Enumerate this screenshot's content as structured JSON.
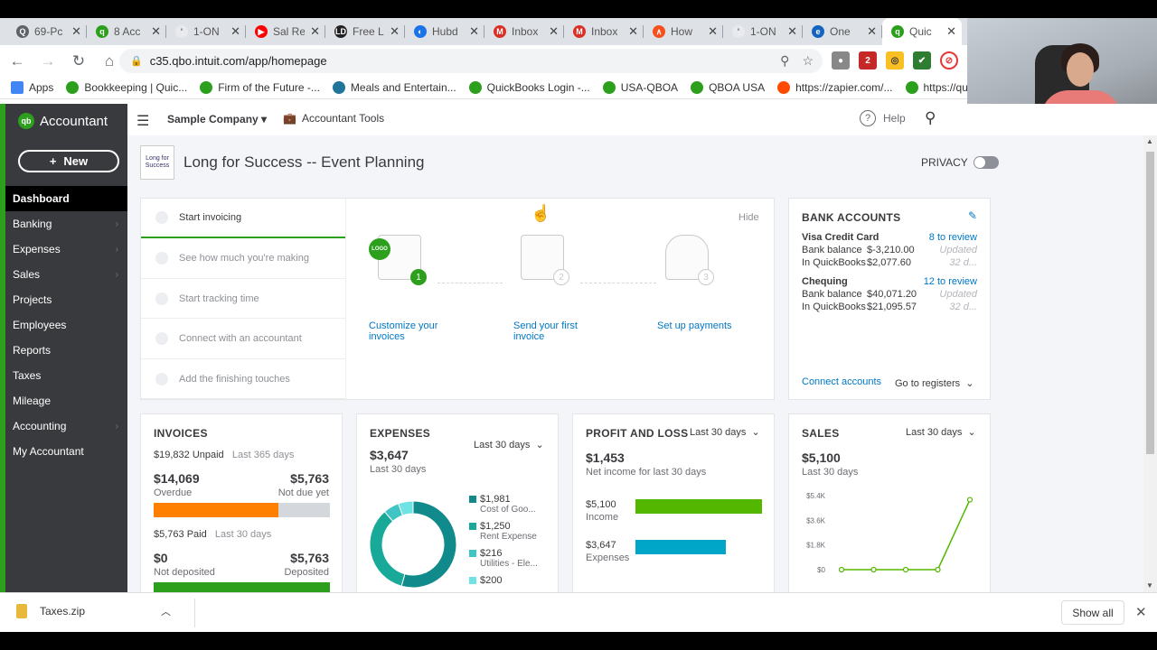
{
  "browser": {
    "tabs": [
      {
        "title": "69-Pc",
        "color": "#5f6368",
        "glyph": "Q"
      },
      {
        "title": "8 Acc",
        "color": "#2ca01c",
        "glyph": "q"
      },
      {
        "title": "1-ON",
        "color": "#fff",
        "glyph": "'"
      },
      {
        "title": "Sal Re",
        "color": "#ff0000",
        "glyph": "▶"
      },
      {
        "title": "Free L",
        "color": "#222",
        "glyph": "LD"
      },
      {
        "title": "Hubd",
        "color": "#1a73e8",
        "glyph": "◐"
      },
      {
        "title": "Inbox",
        "color": "#d93025",
        "glyph": "M"
      },
      {
        "title": "Inbox",
        "color": "#d93025",
        "glyph": "M"
      },
      {
        "title": "How",
        "color": "#f4511e",
        "glyph": "∧"
      },
      {
        "title": "1-ON",
        "color": "#fff",
        "glyph": "'"
      },
      {
        "title": "One",
        "color": "#1565c0",
        "glyph": "e"
      },
      {
        "title": "Quic",
        "color": "#2ca01c",
        "glyph": "q",
        "active": true
      }
    ],
    "url": "c35.qbo.intuit.com/app/homepage",
    "bookmarks": [
      {
        "label": "Apps",
        "color": "#4285f4"
      },
      {
        "label": "Bookkeeping | Quic...",
        "color": "#2ca01c"
      },
      {
        "label": "Firm of the Future -...",
        "color": "#2ca01c"
      },
      {
        "label": "Meals and Entertain...",
        "color": "#21759b"
      },
      {
        "label": "QuickBooks Login -...",
        "color": "#2ca01c"
      },
      {
        "label": "USA-QBOA",
        "color": "#2ca01c"
      },
      {
        "label": "QBOA USA",
        "color": "#2ca01c"
      },
      {
        "label": "https://zapier.com/...",
        "color": "#ff4a00"
      },
      {
        "label": "https://quick",
        "color": "#2ca01c"
      }
    ]
  },
  "sidebar": {
    "brand": "Accountant",
    "new_label": "New",
    "items": [
      {
        "label": "Dashboard",
        "active": true,
        "chev": false
      },
      {
        "label": "Banking",
        "chev": true
      },
      {
        "label": "Expenses",
        "chev": true
      },
      {
        "label": "Sales",
        "chev": true
      },
      {
        "label": "Projects",
        "chev": false
      },
      {
        "label": "Employees",
        "chev": false
      },
      {
        "label": "Reports",
        "chev": false
      },
      {
        "label": "Taxes",
        "chev": false
      },
      {
        "label": "Mileage",
        "chev": false
      },
      {
        "label": "Accounting",
        "chev": true
      },
      {
        "label": "My Accountant",
        "chev": false
      }
    ]
  },
  "header": {
    "company": "Sample Company ▾",
    "accountant_tools": "Accountant Tools",
    "help": "Help"
  },
  "company": {
    "name": "Long for Success -- Event Planning",
    "logo_text": "Long for Success",
    "privacy": "PRIVACY"
  },
  "setup": {
    "hide": "Hide",
    "steps": [
      "Start invoicing",
      "See how much you're making",
      "Start tracking time",
      "Connect with an accountant",
      "Add the finishing touches"
    ],
    "actions": [
      {
        "label": "Customize your invoices",
        "num": "1"
      },
      {
        "label": "Send your first invoice",
        "num": "2"
      },
      {
        "label": "Set up payments",
        "num": "3"
      }
    ],
    "logo_badge": "LOGO"
  },
  "bank": {
    "title": "BANK ACCOUNTS",
    "accounts": [
      {
        "name": "Visa Credit Card",
        "review": "8 to review",
        "bank_label": "Bank balance",
        "bank_value": "$-3,210.00",
        "qb_label": "In QuickBooks",
        "qb_value": "$2,077.60",
        "updated": "Updated",
        "ago": "32 d..."
      },
      {
        "name": "Chequing",
        "review": "12 to review",
        "bank_label": "Bank balance",
        "bank_value": "$40,071.20",
        "qb_label": "In QuickBooks",
        "qb_value": "$21,095.57",
        "updated": "Updated",
        "ago": "32 d..."
      }
    ],
    "connect": "Connect accounts",
    "registers": "Go to registers"
  },
  "invoices": {
    "title": "INVOICES",
    "unpaid": "$19,832 Unpaid",
    "unpaid_period": "Last 365 days",
    "overdue_amt": "$14,069",
    "overdue_label": "Overdue",
    "notdue_amt": "$5,763",
    "notdue_label": "Not due yet",
    "overdue_fraction": 0.71,
    "paid": "$5,763 Paid",
    "paid_period": "Last 30 days",
    "notdep_amt": "$0",
    "notdep_label": "Not deposited",
    "dep_amt": "$5,763",
    "dep_label": "Deposited",
    "colors": {
      "overdue": "#ff8000",
      "notdue": "#d4d7dc",
      "deposited": "#2ca01c"
    }
  },
  "expenses": {
    "title": "EXPENSES",
    "period": "Last 30 days",
    "amount": "$3,647",
    "sub": "Last 30 days",
    "legend": [
      {
        "value": "$1,981",
        "label": "Cost of Goo...",
        "color": "#108a8a"
      },
      {
        "value": "$1,250",
        "label": "Rent Expense",
        "color": "#18a999"
      },
      {
        "value": "$216",
        "label": "Utilities - Ele...",
        "color": "#40c4c4"
      },
      {
        "value": "$200",
        "label": "",
        "color": "#6fe3e3"
      }
    ]
  },
  "pnl": {
    "title": "PROFIT AND LOSS",
    "period": "Last 30 days",
    "amount": "$1,453",
    "sub": "Net income for last 30 days",
    "income_amt": "$5,100",
    "income_label": "Income",
    "expense_amt": "$3,647",
    "expense_label": "Expenses",
    "income_color": "#53b700",
    "expense_color": "#00a6c7"
  },
  "sales": {
    "title": "SALES",
    "period": "Last 30 days",
    "amount": "$5,100",
    "sub": "Last 30 days"
  },
  "chart_data": {
    "type": "line",
    "title": "",
    "yticks": [
      "$5.4K",
      "$3.6K",
      "$1.8K",
      "$0"
    ],
    "ylim": [
      0,
      5400
    ],
    "values": [
      0,
      0,
      0,
      0,
      5100
    ],
    "xlabel": "",
    "ylabel": "",
    "color": "#53b700"
  },
  "downloads": {
    "file": "Taxes.zip",
    "show_all": "Show all"
  }
}
